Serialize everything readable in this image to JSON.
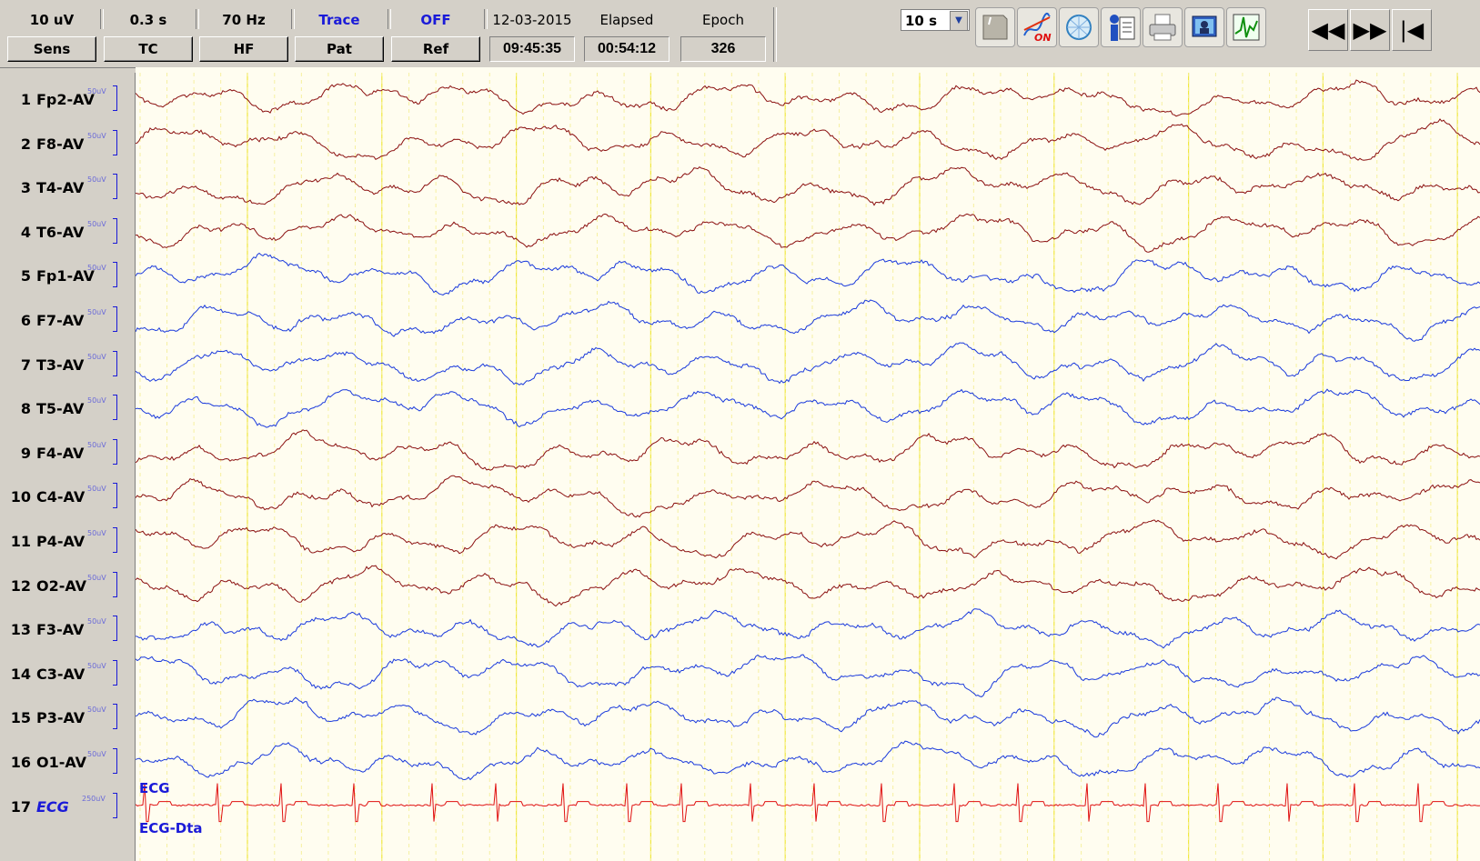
{
  "toolbar": {
    "sens": {
      "value": "10 uV",
      "button": "Sens"
    },
    "tc": {
      "value": "0.3 s",
      "button": "TC"
    },
    "hf": {
      "value": "70 Hz",
      "button": "HF"
    },
    "pat": {
      "value": "Trace",
      "button": "Pat"
    },
    "ref": {
      "value": "OFF",
      "button": "Ref"
    },
    "date": {
      "label": "12-03-2015",
      "value": "09:45:35"
    },
    "elapsed": {
      "label": "Elapsed",
      "value": "00:54:12"
    },
    "epoch": {
      "label": "Epoch",
      "value": "326"
    },
    "timebase": "10 s",
    "tools": [
      "note-icon",
      "montage-on-icon",
      "head-map-icon",
      "patient-file-icon",
      "printer-icon",
      "video-icon",
      "spike-detect-icon"
    ],
    "nav": [
      "◀◀",
      "▶▶",
      "|◀"
    ]
  },
  "channels": [
    {
      "num": "1",
      "name": "Fp2-AV",
      "scale": "50uV",
      "color": "#8b1010"
    },
    {
      "num": "2",
      "name": "F8-AV",
      "scale": "50uV",
      "color": "#8b1010"
    },
    {
      "num": "3",
      "name": "T4-AV",
      "scale": "50uV",
      "color": "#8b1010"
    },
    {
      "num": "4",
      "name": "T6-AV",
      "scale": "50uV",
      "color": "#8b1010"
    },
    {
      "num": "5",
      "name": "Fp1-AV",
      "scale": "50uV",
      "color": "#1a3adc"
    },
    {
      "num": "6",
      "name": "F7-AV",
      "scale": "50uV",
      "color": "#1a3adc"
    },
    {
      "num": "7",
      "name": "T3-AV",
      "scale": "50uV",
      "color": "#1a3adc"
    },
    {
      "num": "8",
      "name": "T5-AV",
      "scale": "50uV",
      "color": "#1a3adc"
    },
    {
      "num": "9",
      "name": "F4-AV",
      "scale": "50uV",
      "color": "#8b1010"
    },
    {
      "num": "10",
      "name": "C4-AV",
      "scale": "50uV",
      "color": "#8b1010"
    },
    {
      "num": "11",
      "name": "P4-AV",
      "scale": "50uV",
      "color": "#8b1010"
    },
    {
      "num": "12",
      "name": "O2-AV",
      "scale": "50uV",
      "color": "#8b1010"
    },
    {
      "num": "13",
      "name": "F3-AV",
      "scale": "50uV",
      "color": "#1a3adc"
    },
    {
      "num": "14",
      "name": "C3-AV",
      "scale": "50uV",
      "color": "#1a3adc"
    },
    {
      "num": "15",
      "name": "P3-AV",
      "scale": "50uV",
      "color": "#1a3adc"
    },
    {
      "num": "16",
      "name": "O1-AV",
      "scale": "50uV",
      "color": "#1a3adc"
    },
    {
      "num": "17",
      "name": "ECG",
      "scale": "250uV",
      "color": "#e01010"
    }
  ],
  "ecg_label": "ECG",
  "ecg_dta_label": "ECG-Dta",
  "colors": {
    "background": "#fffdf0",
    "grid_major": "#f0e840",
    "grid_minor": "#f6f0a0"
  }
}
